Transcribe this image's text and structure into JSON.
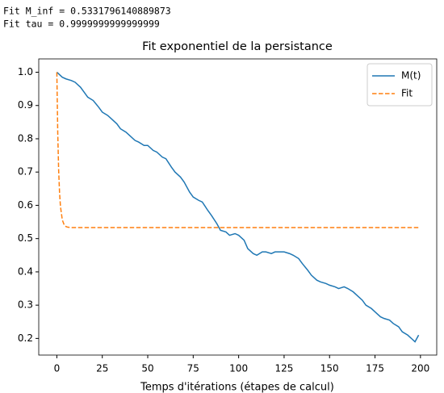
{
  "output": [
    "Fit M_inf = 0.5331796140889873",
    "Fit tau = 0.9999999999999999"
  ],
  "chart_data": {
    "type": "line",
    "title": "Fit exponentiel de la persistance",
    "xlabel": "Temps d'itérations (étapes de calcul)",
    "xlim": [
      -9.95,
      208.95
    ],
    "xticks": [
      0,
      25,
      50,
      75,
      100,
      125,
      150,
      175,
      200
    ],
    "ylim": [
      0.15,
      1.04
    ],
    "yticks": [
      0.2,
      0.3,
      0.4,
      0.5,
      0.6,
      0.7,
      0.8,
      0.9,
      {
        "value": 1.0,
        "label": "1.0"
      }
    ],
    "grid": false,
    "legend": "upper right",
    "series": [
      {
        "name": "M(t)",
        "color": "#1f77b4",
        "dash": false,
        "x": [
          0,
          3,
          5,
          8,
          10,
          13,
          15,
          17,
          20,
          23,
          25,
          28,
          30,
          33,
          35,
          38,
          40,
          43,
          45,
          48,
          50,
          53,
          55,
          58,
          60,
          63,
          65,
          68,
          70,
          73,
          75,
          78,
          80,
          83,
          85,
          88,
          90,
          93,
          95,
          98,
          100,
          103,
          105,
          108,
          110,
          113,
          115,
          118,
          120,
          123,
          125,
          128,
          130,
          133,
          135,
          138,
          140,
          143,
          145,
          148,
          150,
          153,
          155,
          158,
          160,
          163,
          165,
          168,
          170,
          173,
          175,
          178,
          180,
          183,
          185,
          188,
          190,
          193,
          195,
          197,
          199
        ],
        "values": [
          1.0,
          0.985,
          0.98,
          0.975,
          0.97,
          0.955,
          0.94,
          0.925,
          0.915,
          0.895,
          0.88,
          0.87,
          0.86,
          0.845,
          0.83,
          0.82,
          0.81,
          0.795,
          0.79,
          0.78,
          0.78,
          0.765,
          0.76,
          0.745,
          0.74,
          0.715,
          0.7,
          0.685,
          0.67,
          0.64,
          0.625,
          0.615,
          0.61,
          0.585,
          0.57,
          0.545,
          0.525,
          0.52,
          0.51,
          0.515,
          0.51,
          0.495,
          0.47,
          0.455,
          0.45,
          0.46,
          0.46,
          0.455,
          0.46,
          0.46,
          0.46,
          0.455,
          0.45,
          0.44,
          0.425,
          0.405,
          0.39,
          0.375,
          0.37,
          0.365,
          0.36,
          0.355,
          0.35,
          0.355,
          0.35,
          0.34,
          0.33,
          0.315,
          0.3,
          0.29,
          0.28,
          0.265,
          0.26,
          0.255,
          0.245,
          0.235,
          0.22,
          0.21,
          0.2,
          0.19,
          0.21
        ]
      },
      {
        "name": "Fit",
        "color": "#ff7f0e",
        "dash": true,
        "x": [
          0,
          0.5,
          1,
          1.5,
          2,
          3,
          4,
          5,
          6,
          8,
          10,
          199
        ],
        "values": [
          1.0,
          0.8163,
          0.7049,
          0.6373,
          0.5964,
          0.5564,
          0.5417,
          0.5363,
          0.5343,
          0.5333,
          0.5332,
          0.5332
        ]
      }
    ]
  }
}
